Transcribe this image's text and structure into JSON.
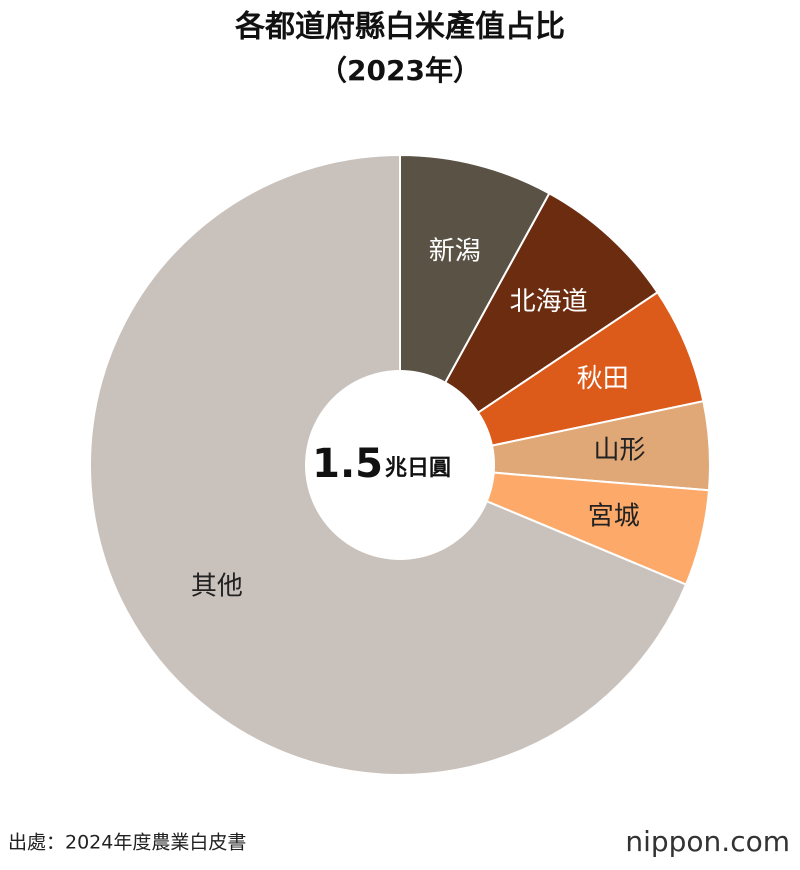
{
  "chart_data": {
    "type": "donut",
    "title": "各都道府縣白米產值占比",
    "subtitle": "（2023年）",
    "categories": [
      "新潟",
      "北海道",
      "秋田",
      "山形",
      "宮城",
      "其他"
    ],
    "values": [
      8.0,
      7.6,
      6.1,
      4.6,
      5.0,
      68.7
    ],
    "colors": [
      "#5a5245",
      "#6b2c10",
      "#dc5a1a",
      "#e0a877",
      "#fca96a",
      "#c9c1bc"
    ],
    "label_colors": [
      "#ffffff",
      "#ffffff",
      "#ffffff",
      "#222222",
      "#222222",
      "#222222"
    ],
    "total": 1.5,
    "total_unit": "兆日圓",
    "source": "出處：2024年度農業白皮書",
    "logo": "nippon.com"
  }
}
